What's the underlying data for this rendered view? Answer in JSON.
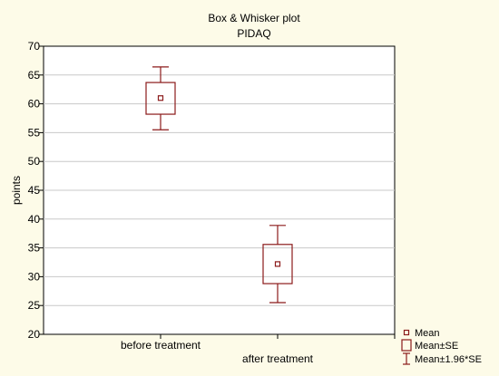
{
  "chart_data": {
    "type": "box",
    "title": "Box & Whisker plot",
    "subtitle": "PIDAQ",
    "xlabel": "",
    "ylabel": "points",
    "ylim": [
      20,
      70
    ],
    "yticks": [
      20,
      25,
      30,
      35,
      40,
      45,
      50,
      55,
      60,
      65,
      70
    ],
    "grid": true,
    "legend_position": "bottom-right",
    "categories": [
      "before treatment",
      "after treatment"
    ],
    "boxes": [
      {
        "category": "before treatment",
        "mean": 61.0,
        "se_low": 58.2,
        "se_high": 63.7,
        "ci_low": 55.5,
        "ci_high": 66.4
      },
      {
        "category": "after treatment",
        "mean": 32.2,
        "se_low": 28.8,
        "se_high": 35.6,
        "ci_low": 25.5,
        "ci_high": 38.9
      }
    ],
    "legend": [
      {
        "symbol": "mean-marker",
        "label": "Mean"
      },
      {
        "symbol": "box",
        "label": "Mean±SE"
      },
      {
        "symbol": "whisker",
        "label": "Mean±1.96*SE"
      }
    ],
    "colors": {
      "series": "#8b1a1a",
      "background": "#fdfbe8",
      "plot": "#ffffff",
      "grid": "#c8c8c8"
    }
  }
}
